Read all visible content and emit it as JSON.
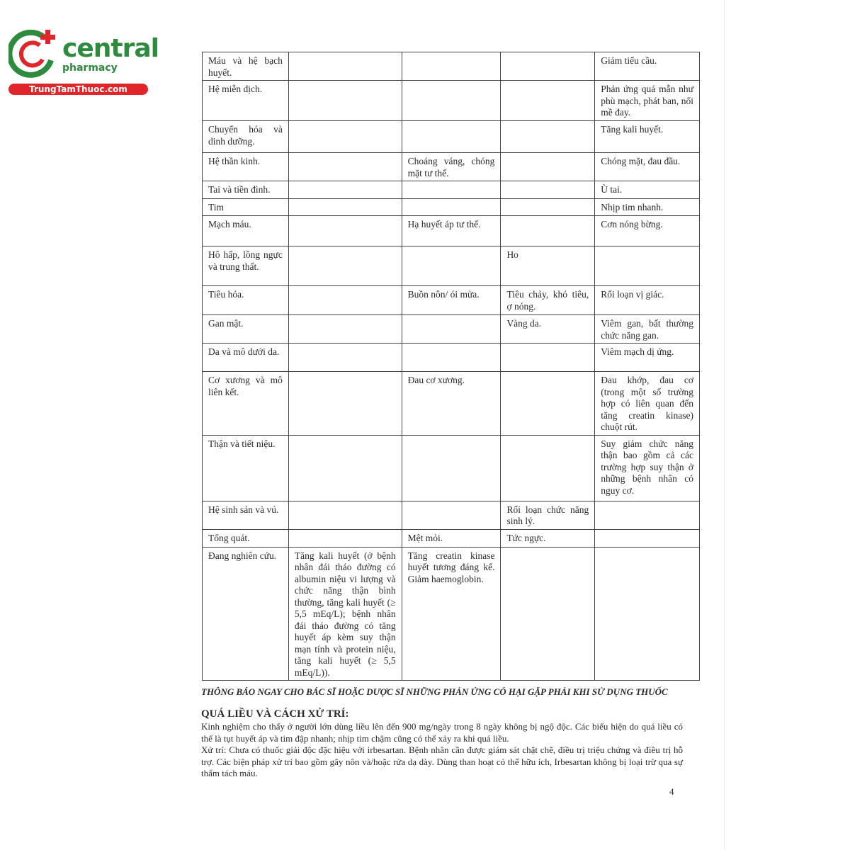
{
  "logo": {
    "brand": "central",
    "sub": "pharmacy",
    "site": "TrungTamThuoc.com",
    "colors": {
      "green": "#2e8b3e",
      "red": "#e0262b"
    }
  },
  "table": {
    "rows": [
      [
        "Máu và hệ bạch huyết.",
        "",
        "",
        "",
        "Giảm tiểu cầu."
      ],
      [
        "Hệ miễn dịch.",
        "",
        "",
        "",
        "Phản ứng quá mẫn như phù mạch, phát ban, nổi mề đay."
      ],
      [
        "Chuyển hóa và dinh dưỡng.",
        "",
        "",
        "",
        "Tăng kali huyết."
      ],
      [
        "Hệ thần kinh.",
        "",
        "Choáng váng, chóng mặt tư thế.",
        "",
        "Chóng mặt, đau đầu."
      ],
      [
        "Tai và tiền đình.",
        "",
        "",
        "",
        "Ù tai."
      ],
      [
        "Tim",
        "",
        "",
        "",
        "Nhịp tim nhanh."
      ],
      [
        "Mạch máu.",
        "",
        "Hạ huyết áp tư thế.",
        "",
        "Cơn nóng bừng."
      ],
      [
        "Hô hấp, lồng ngực và trung thất.",
        "",
        "",
        "Ho",
        ""
      ],
      [
        "Tiêu hóa.",
        "",
        "Buồn nôn/ ói mửa.",
        "Tiêu chảy, khó tiêu, ợ nóng.",
        "Rối loạn vị giác."
      ],
      [
        "Gan mật.",
        "",
        "",
        "Vàng da.",
        "Viêm gan, bất thường chức năng gan."
      ],
      [
        "Da và mô dưới da.",
        "",
        "",
        "",
        "Viêm mạch dị ứng."
      ],
      [
        "Cơ xương và mô liên kết.",
        "",
        "Đau cơ xương.",
        "",
        "Đau khớp, đau cơ (trong một số trường hợp có liên quan đến tăng creatin kinase) chuột rút."
      ],
      [
        "Thận và tiết niệu.",
        "",
        "",
        "",
        "Suy giảm chức năng thận bao gồm cả các trường hợp suy thận ở những bệnh nhân có nguy cơ."
      ],
      [
        "Hệ sinh sản và vú.",
        "",
        "",
        "Rối loạn chức năng sinh lý.",
        ""
      ],
      [
        "Tổng quát.",
        "",
        "Mệt mỏi.",
        "Tức ngực.",
        ""
      ],
      [
        "Đang nghiên cứu.",
        "Tăng kali huyết (ở bệnh nhân đái tháo đường có albumin niệu vi lượng và chức năng thận bình thường, tăng kali huyết (≥ 5,5 mEq/L); bệnh nhân đái tháo đường có tăng huyết áp kèm suy thận mạn tính và protein niệu, tăng kali huyết (≥ 5,5 mEq/L)).",
        "Tăng creatin kinase huyết tương đáng kể. Giảm haemoglobin.",
        "",
        ""
      ]
    ]
  },
  "notice": "THÔNG BÁO NGAY CHO BÁC SĨ HOẶC DƯỢC SĨ NHỮNG PHẢN ỨNG CÓ HẠI GẶP PHẢI KHI SỬ DỤNG THUỐC",
  "overdose": {
    "heading": "QUÁ LIỀU VÀ CÁCH XỬ TRÍ:",
    "p1": "Kinh nghiệm cho thấy ở người lớn dùng liều lên đến 900 mg/ngày trong 8 ngày không bị ngộ độc. Các biểu hiện do quá liều có thể là tụt huyết áp và tim đập nhanh; nhịp tim chậm cũng có thể xảy ra khi quá liều.",
    "p2": "Xử trí: Chưa có thuốc giải độc đặc hiệu với irbesartan. Bệnh nhân cần được giám sát chặt chẽ, điều trị triệu chứng và điều trị hỗ trợ. Các biện pháp xử trí bao gồm gây nôn và/hoặc rửa dạ dày. Dùng than hoạt có thể hữu ích, Irbesartan không bị loại trừ qua sự thẩm tách máu."
  },
  "page_number": "4"
}
